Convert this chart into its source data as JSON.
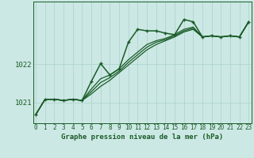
{
  "title": "Graphe pression niveau de la mer (hPa)",
  "bg_color": "#cce8e4",
  "grid_color": "#b0d4cf",
  "line_color": "#1a5c28",
  "x_ticks": [
    0,
    1,
    2,
    3,
    4,
    5,
    6,
    7,
    8,
    9,
    10,
    11,
    12,
    13,
    14,
    15,
    16,
    17,
    18,
    19,
    20,
    21,
    22,
    23
  ],
  "y_ticks": [
    1021,
    1022
  ],
  "ylim": [
    1020.45,
    1023.65
  ],
  "xlim": [
    -0.3,
    23.3
  ],
  "series_main": [
    1020.68,
    1021.08,
    1021.08,
    1021.05,
    1021.08,
    1021.05,
    1021.55,
    1022.02,
    1021.72,
    1021.88,
    1022.58,
    1022.92,
    1022.88,
    1022.88,
    1022.82,
    1022.78,
    1023.18,
    1023.12,
    1022.72,
    1022.75,
    1022.72,
    1022.75,
    1022.72,
    1023.12
  ],
  "series_lines": [
    [
      1020.68,
      1021.08,
      1021.08,
      1021.05,
      1021.08,
      1021.05,
      1021.22,
      1021.42,
      1021.58,
      1021.78,
      1021.98,
      1022.18,
      1022.38,
      1022.52,
      1022.62,
      1022.72,
      1022.85,
      1022.92,
      1022.72,
      1022.75,
      1022.72,
      1022.75,
      1022.72,
      1023.12
    ],
    [
      1020.68,
      1021.08,
      1021.08,
      1021.05,
      1021.08,
      1021.05,
      1021.28,
      1021.52,
      1021.65,
      1021.82,
      1022.05,
      1022.25,
      1022.45,
      1022.58,
      1022.65,
      1022.75,
      1022.88,
      1022.95,
      1022.72,
      1022.75,
      1022.72,
      1022.75,
      1022.72,
      1023.12
    ],
    [
      1020.68,
      1021.08,
      1021.08,
      1021.05,
      1021.08,
      1021.05,
      1021.35,
      1021.62,
      1021.72,
      1021.88,
      1022.12,
      1022.32,
      1022.52,
      1022.62,
      1022.68,
      1022.78,
      1022.92,
      1022.98,
      1022.72,
      1022.75,
      1022.72,
      1022.75,
      1022.72,
      1023.12
    ]
  ],
  "tick_fontsize": 5.5,
  "label_fontsize": 6.5,
  "title_fontsize": 6.5
}
